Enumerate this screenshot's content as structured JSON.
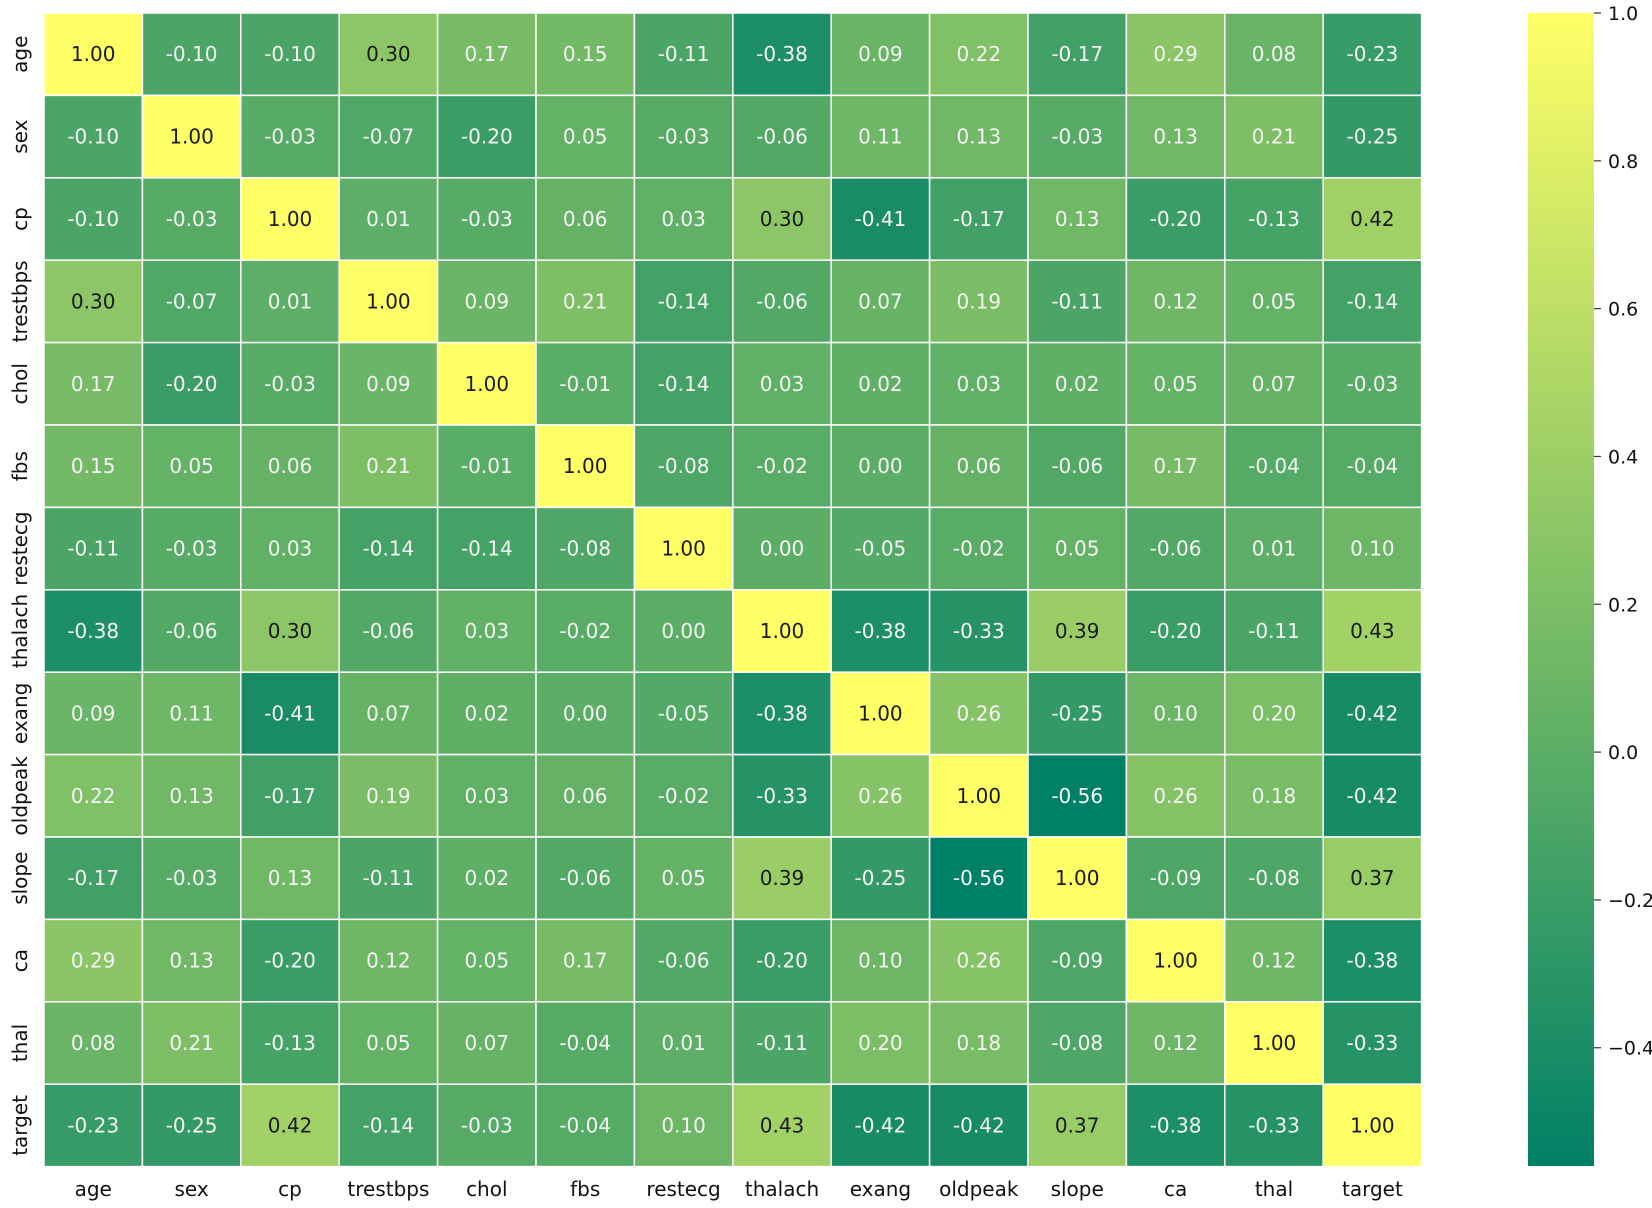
{
  "chart_data": {
    "type": "heatmap",
    "title": "",
    "xlabel": "",
    "ylabel": "",
    "annotations": true,
    "value_format": "0.00",
    "grid": true,
    "colormap": "summer",
    "colors": {
      "low": "#008066",
      "high": "#ffff66",
      "grid_line": "#ffffff",
      "text_dark": "#1a1a1a",
      "text_light": "#f5f5f5"
    },
    "vmin": -0.56,
    "vmax": 1.0,
    "colorbar": {
      "position": "right",
      "ticks": [
        1.0,
        0.8,
        0.6,
        0.4,
        0.2,
        0.0,
        -0.2,
        -0.4
      ],
      "tick_labels": [
        "1.0",
        "0.8",
        "0.6",
        "0.4",
        "0.2",
        "0.0",
        "−0.2",
        "−0.4"
      ]
    },
    "x_categories": [
      "age",
      "sex",
      "cp",
      "trestbps",
      "chol",
      "fbs",
      "restecg",
      "thalach",
      "exang",
      "oldpeak",
      "slope",
      "ca",
      "thal",
      "target"
    ],
    "y_categories": [
      "age",
      "sex",
      "cp",
      "trestbps",
      "chol",
      "fbs",
      "restecg",
      "thalach",
      "exang",
      "oldpeak",
      "slope",
      "ca",
      "thal",
      "target"
    ],
    "values": [
      [
        1.0,
        -0.1,
        -0.1,
        0.3,
        0.17,
        0.15,
        -0.11,
        -0.38,
        0.09,
        0.22,
        -0.17,
        0.29,
        0.08,
        -0.23
      ],
      [
        -0.1,
        1.0,
        -0.03,
        -0.07,
        -0.2,
        0.05,
        -0.03,
        -0.06,
        0.11,
        0.13,
        -0.03,
        0.13,
        0.21,
        -0.25
      ],
      [
        -0.1,
        -0.03,
        1.0,
        0.01,
        -0.03,
        0.06,
        0.03,
        0.3,
        -0.41,
        -0.17,
        0.13,
        -0.2,
        -0.13,
        0.42
      ],
      [
        0.3,
        -0.07,
        0.01,
        1.0,
        0.09,
        0.21,
        -0.14,
        -0.06,
        0.07,
        0.19,
        -0.11,
        0.12,
        0.05,
        -0.14
      ],
      [
        0.17,
        -0.2,
        -0.03,
        0.09,
        1.0,
        -0.01,
        -0.14,
        0.03,
        0.02,
        0.03,
        0.02,
        0.05,
        0.07,
        -0.03
      ],
      [
        0.15,
        0.05,
        0.06,
        0.21,
        -0.01,
        1.0,
        -0.08,
        -0.02,
        0.0,
        0.06,
        -0.06,
        0.17,
        -0.04,
        -0.04
      ],
      [
        -0.11,
        -0.03,
        0.03,
        -0.14,
        -0.14,
        -0.08,
        1.0,
        0.0,
        -0.05,
        -0.02,
        0.05,
        -0.06,
        0.01,
        0.1
      ],
      [
        -0.38,
        -0.06,
        0.3,
        -0.06,
        0.03,
        -0.02,
        0.0,
        1.0,
        -0.38,
        -0.33,
        0.39,
        -0.2,
        -0.11,
        0.43
      ],
      [
        0.09,
        0.11,
        -0.41,
        0.07,
        0.02,
        0.0,
        -0.05,
        -0.38,
        1.0,
        0.26,
        -0.25,
        0.1,
        0.2,
        -0.42
      ],
      [
        0.22,
        0.13,
        -0.17,
        0.19,
        0.03,
        0.06,
        -0.02,
        -0.33,
        0.26,
        1.0,
        -0.56,
        0.26,
        0.18,
        -0.42
      ],
      [
        -0.17,
        -0.03,
        0.13,
        -0.11,
        0.02,
        -0.06,
        0.05,
        0.39,
        -0.25,
        -0.56,
        1.0,
        -0.09,
        -0.08,
        0.37
      ],
      [
        0.29,
        0.13,
        -0.2,
        0.12,
        0.05,
        0.17,
        -0.06,
        -0.2,
        0.1,
        0.26,
        -0.09,
        1.0,
        0.12,
        -0.38
      ],
      [
        0.08,
        0.21,
        -0.13,
        0.05,
        0.07,
        -0.04,
        0.01,
        -0.11,
        0.2,
        0.18,
        -0.08,
        0.12,
        1.0,
        -0.33
      ],
      [
        -0.23,
        -0.25,
        0.42,
        -0.14,
        -0.03,
        -0.04,
        0.1,
        0.43,
        -0.42,
        -0.42,
        0.37,
        -0.38,
        -0.33,
        1.0
      ]
    ]
  }
}
